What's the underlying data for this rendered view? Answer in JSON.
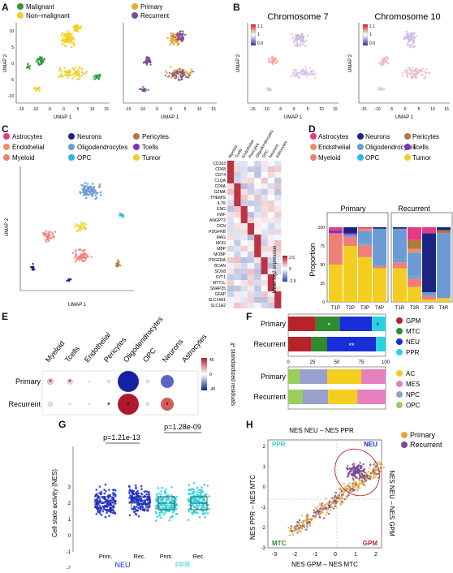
{
  "panel_labels": {
    "A": "A",
    "B": "B",
    "C": "C",
    "D": "D",
    "E": "E",
    "F": "F",
    "G": "G",
    "H": "H"
  },
  "colors": {
    "malignant": "#2e9a3a",
    "non_malignant": "#f3ce20",
    "primary": "#e4a93a",
    "recurrent": "#7a4a93",
    "astrocytes": "#e63a86",
    "neurons": "#1b2480",
    "pericytes": "#b07a3c",
    "endothelial": "#ef8c6a",
    "oligodendrocytes": "#6c9bd6",
    "tcells": "#8a2dbf",
    "myeloid": "#f07f7a",
    "opc": "#2bb7e6",
    "tumor": "#f3ce20",
    "gpm": "#b8232b",
    "mtc": "#2e8b2e",
    "neu": "#1a2ed8",
    "ppr": "#28d3df",
    "ac": "#f3ce20",
    "mes": "#e77fbf",
    "npc": "#9aa0cc",
    "opc_state": "#9acd5c"
  },
  "axes": {
    "umap1": "UMAP 1",
    "umap2": "UMAP 2",
    "umap_ticks_x": [
      "-15",
      "-10",
      "-5",
      "0",
      "5",
      "10",
      "15"
    ],
    "umap_ticks_y": [
      "10",
      "5",
      "0",
      "-5",
      "-10"
    ]
  },
  "panelA": {
    "legend1": [
      "Malignant",
      "Non–malignant"
    ],
    "legend2": [
      "Primary",
      "Recurrent"
    ]
  },
  "panelB": {
    "titles": [
      "Chromosome 7",
      "Chromosome 10"
    ],
    "scale1": [
      "1.1",
      "1",
      "0.9"
    ],
    "scale2": [
      "1.1",
      "1",
      "0.9"
    ]
  },
  "panelC": {
    "legend": [
      "Astrocytes",
      "Neurons",
      "Pericytes",
      "Endothelial",
      "Oligodendrocytes",
      "Tcells",
      "Myeloid",
      "OPC",
      "Tumor"
    ],
    "heatmap_cols": [
      "Myeloid",
      "Tcells",
      "Endothelial",
      "Pericytes",
      "Oligodendrocytes",
      "OPC",
      "Neurons",
      "Astrocytes"
    ],
    "heatmap_rows": [
      "CD163",
      "CD68",
      "CD74",
      "C1QA",
      "CD8A",
      "GZMA",
      "THEMIS",
      "IL7R",
      "ENG",
      "VWF",
      "ANGPT2",
      "DCN",
      "PDGFRB",
      "MAG",
      "MOG",
      "MBP",
      "MOBP",
      "PDGFRA",
      "BCAN",
      "SOX8",
      "SYT1",
      "MYT1L",
      "SNAP25",
      "GFAP",
      "SLC14A1",
      "SLC1A2"
    ],
    "scale_label": "Mean log2 expression",
    "scale_ticks": [
      "2.5",
      "0",
      "-2.5"
    ]
  },
  "panelD": {
    "legend": [
      "Astrocytes",
      "Neurons",
      "Pericytes",
      "Endothelial",
      "Oligodendrocytes",
      "Tcells",
      "Myeloid",
      "OPC",
      "Tumor"
    ],
    "groups": [
      "Primary",
      "Recurrent"
    ],
    "ylabel": "Proportion",
    "yticks": [
      "100",
      "75",
      "50",
      "25",
      "0"
    ],
    "chart_data": {
      "type": "bar",
      "categories": [
        "T1P",
        "T2P",
        "T3P",
        "T4P",
        "T1R",
        "T2R",
        "T3R",
        "T4R"
      ],
      "series": [
        {
          "name": "Tumor",
          "values": [
            50,
            75,
            60,
            45,
            45,
            20,
            3,
            5
          ]
        },
        {
          "name": "Myeloid",
          "values": [
            42,
            12,
            17,
            3,
            8,
            12,
            5,
            0
          ]
        },
        {
          "name": "OPC",
          "values": [
            0,
            0,
            2,
            0,
            0,
            2,
            0,
            0
          ]
        },
        {
          "name": "Oligodendrocytes",
          "values": [
            0,
            3,
            16,
            50,
            45,
            32,
            5,
            87
          ]
        },
        {
          "name": "Endothelial",
          "values": [
            0,
            0,
            3,
            0,
            0,
            5,
            0,
            0
          ]
        },
        {
          "name": "Pericytes",
          "values": [
            0,
            0,
            0,
            0,
            0,
            12,
            0,
            4
          ]
        },
        {
          "name": "Tcells",
          "values": [
            4,
            2,
            0,
            0,
            0,
            0,
            0,
            0
          ]
        },
        {
          "name": "Neurons",
          "values": [
            0,
            8,
            0,
            2,
            2,
            0,
            79,
            4
          ]
        },
        {
          "name": "Astrocytes",
          "values": [
            4,
            0,
            2,
            0,
            0,
            17,
            8,
            0
          ]
        }
      ],
      "ylim": [
        0,
        100
      ]
    }
  },
  "panelE": {
    "cols": [
      "Myeloid",
      "Tcells",
      "Endothelial",
      "Pericytes",
      "Oligodendrocytes",
      "OPC",
      "Neurons",
      "Astrocytes"
    ],
    "rows": [
      "Primary",
      "Recurrent"
    ],
    "scale_label": "χ² standardized residuals",
    "scale_ticks": [
      "45",
      "0",
      "-45"
    ],
    "star": "*"
  },
  "panelF": {
    "rows": [
      "Primary",
      "Recurrent"
    ],
    "xticks": [
      "0",
      "25",
      "50",
      "75",
      "100"
    ],
    "legend_top": [
      "GPM",
      "MTC",
      "NEU",
      "PPR"
    ],
    "legend_bottom": [
      "AC",
      "MES",
      "NPC",
      "OPC"
    ],
    "chart_data": [
      {
        "type": "bar",
        "categories": [
          "Primary",
          "Recurrent"
        ],
        "series": [
          {
            "name": "GPM",
            "values": [
              28,
              24
            ]
          },
          {
            "name": "MTC",
            "values": [
              25,
              16
            ]
          },
          {
            "name": "NEU",
            "values": [
              33,
              50
            ]
          },
          {
            "name": "PPR",
            "values": [
              14,
              10
            ]
          }
        ]
      },
      {
        "type": "bar",
        "categories": [
          "Primary",
          "Recurrent"
        ],
        "series": [
          {
            "name": "OPC",
            "values": [
              12,
              15
            ]
          },
          {
            "name": "NPC",
            "values": [
              28,
              26
            ]
          },
          {
            "name": "AC",
            "values": [
              35,
              30
            ]
          },
          {
            "name": "MES",
            "values": [
              25,
              29
            ]
          }
        ]
      }
    ],
    "stars_primary": "*",
    "stars_recurrent": "**"
  },
  "panelG": {
    "pvalues": [
      "p=1.21e-13",
      "p=1.28e-09"
    ],
    "ylabel": "Cell state activity (NES)",
    "yticks": [
      "3",
      "2",
      "1",
      "0",
      "-1",
      "-2"
    ],
    "xlabels": [
      "Prim.",
      "Rec.",
      "Prim.",
      "Rec."
    ],
    "groups": [
      "NEU",
      "PPR"
    ]
  },
  "panelH": {
    "top_label": "NES NEU – NES PPR",
    "bottom_label": "NES GPM – NES MTC",
    "left_label": "NES PPR – NES MTC",
    "right_label": "NES NEU – NES GPM",
    "corners": [
      "PPR",
      "NEU",
      "MTC",
      "GPM"
    ],
    "xticks": [
      "-3",
      "-2",
      "-1",
      "0",
      "1",
      "2"
    ],
    "yticks": [
      "2",
      "1",
      "0",
      "-1",
      "-2",
      "-3"
    ],
    "legend": [
      "Primary",
      "Recurrent"
    ]
  }
}
